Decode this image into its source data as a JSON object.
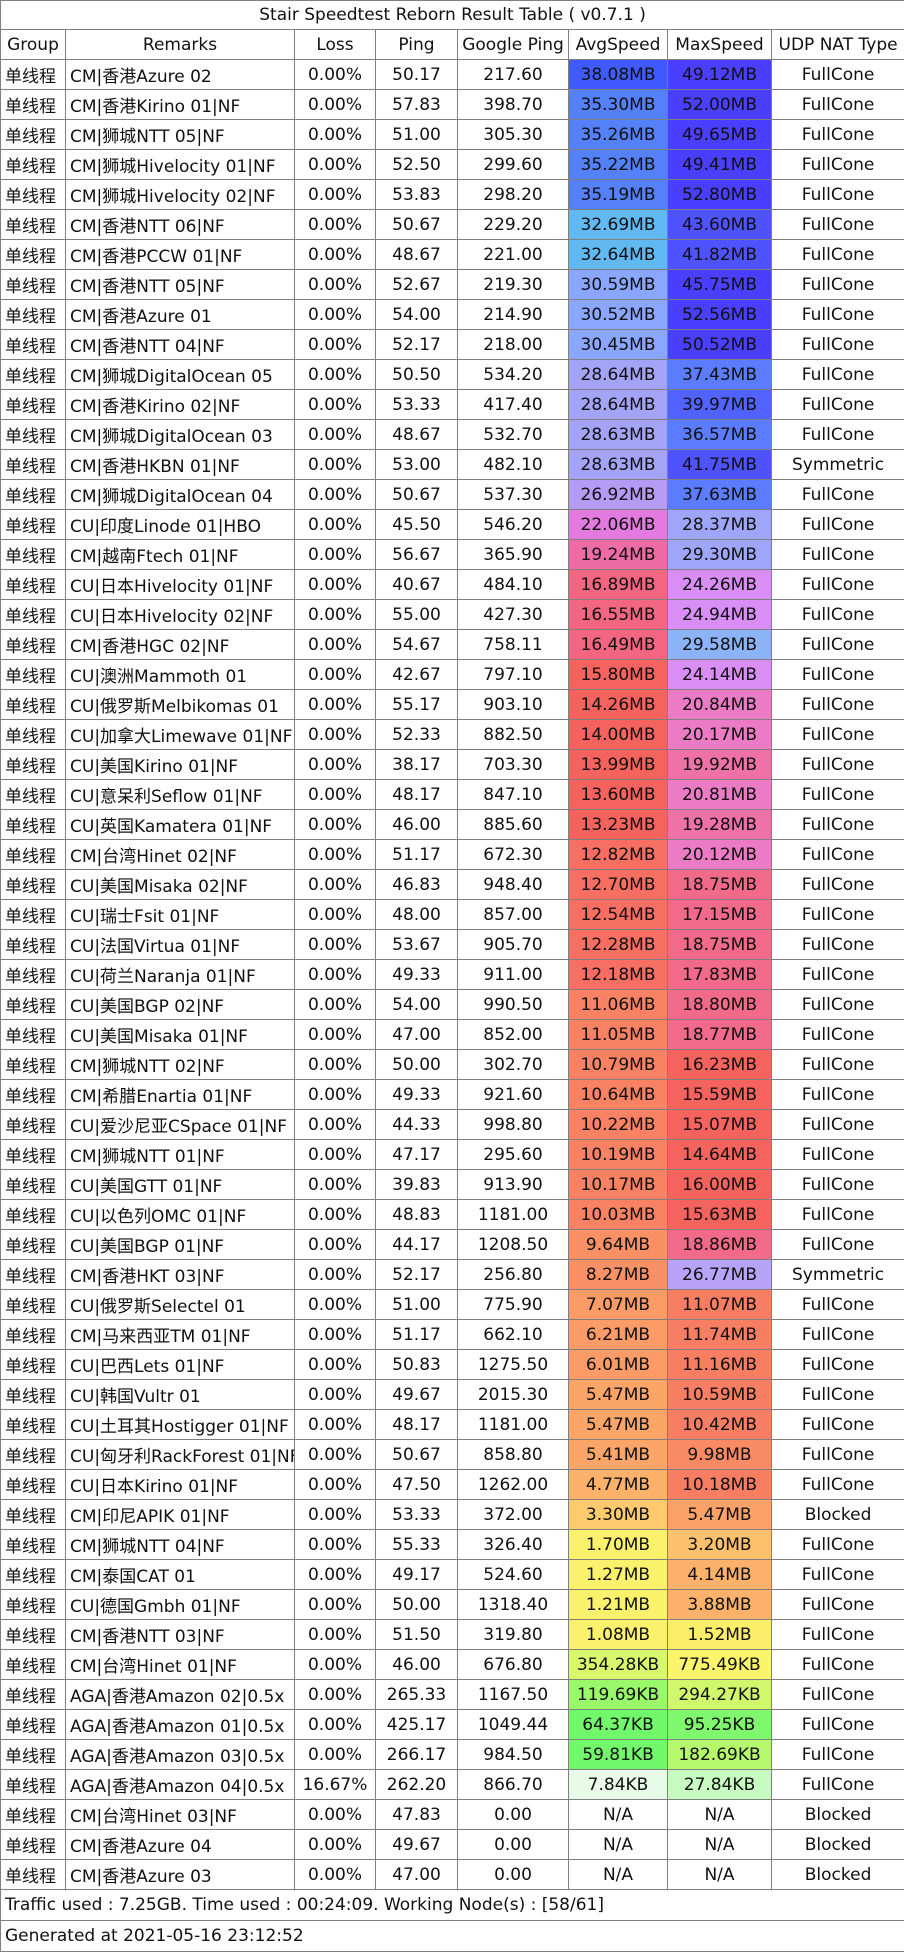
{
  "title": "Stair Speedtest Reborn Result Table ( v0.7.1 )",
  "headers": [
    "Group",
    "Remarks",
    "Loss",
    "Ping",
    "Google Ping",
    "AvgSpeed",
    "MaxSpeed",
    "UDP NAT Type"
  ],
  "rows": [
    {
      "group": "单线程",
      "remarks": "CM|香港Azure 02",
      "loss": "0.00%",
      "ping": "50.17",
      "gping": "217.60",
      "avg": "38.08MB",
      "avg_color": "#3F5BFF",
      "max": "49.12MB",
      "max_color": "#4A3EFF",
      "nat": "FullCone"
    },
    {
      "group": "单线程",
      "remarks": "CM|香港Kirino 01|NF",
      "loss": "0.00%",
      "ping": "57.83",
      "gping": "398.70",
      "avg": "35.30MB",
      "avg_color": "#5581F8",
      "max": "52.00MB",
      "max_color": "#4A3EFF",
      "nat": "FullCone"
    },
    {
      "group": "单线程",
      "remarks": "CM|狮城NTT 05|NF",
      "loss": "0.00%",
      "ping": "51.00",
      "gping": "305.30",
      "avg": "35.26MB",
      "avg_color": "#5581F8",
      "max": "49.65MB",
      "max_color": "#4A3EFF",
      "nat": "FullCone"
    },
    {
      "group": "单线程",
      "remarks": "CM|狮城Hivelocity 01|NF",
      "loss": "0.00%",
      "ping": "52.50",
      "gping": "299.60",
      "avg": "35.22MB",
      "avg_color": "#5581F8",
      "max": "49.41MB",
      "max_color": "#4A3EFF",
      "nat": "FullCone"
    },
    {
      "group": "单线程",
      "remarks": "CM|狮城Hivelocity 02|NF",
      "loss": "0.00%",
      "ping": "53.83",
      "gping": "298.20",
      "avg": "35.19MB",
      "avg_color": "#5581F8",
      "max": "52.80MB",
      "max_color": "#4A3EFF",
      "nat": "FullCone"
    },
    {
      "group": "单线程",
      "remarks": "CM|香港NTT 06|NF",
      "loss": "0.00%",
      "ping": "50.67",
      "gping": "229.20",
      "avg": "32.69MB",
      "avg_color": "#62B9F2",
      "max": "43.60MB",
      "max_color": "#4F52FF",
      "nat": "FullCone"
    },
    {
      "group": "单线程",
      "remarks": "CM|香港PCCW 01|NF",
      "loss": "0.00%",
      "ping": "48.67",
      "gping": "221.00",
      "avg": "32.64MB",
      "avg_color": "#62B9F2",
      "max": "41.82MB",
      "max_color": "#4F52FF",
      "nat": "FullCone"
    },
    {
      "group": "单线程",
      "remarks": "CM|香港NTT 05|NF",
      "loss": "0.00%",
      "ping": "52.67",
      "gping": "219.30",
      "avg": "30.59MB",
      "avg_color": "#8BA6FF",
      "max": "45.75MB",
      "max_color": "#4A3EFF",
      "nat": "FullCone"
    },
    {
      "group": "单线程",
      "remarks": "CM|香港Azure 01",
      "loss": "0.00%",
      "ping": "54.00",
      "gping": "214.90",
      "avg": "30.52MB",
      "avg_color": "#8BA6FF",
      "max": "52.56MB",
      "max_color": "#4A3EFF",
      "nat": "FullCone"
    },
    {
      "group": "单线程",
      "remarks": "CM|香港NTT 04|NF",
      "loss": "0.00%",
      "ping": "52.17",
      "gping": "218.00",
      "avg": "30.45MB",
      "avg_color": "#8BA6FF",
      "max": "50.52MB",
      "max_color": "#4A3EFF",
      "nat": "FullCone"
    },
    {
      "group": "单线程",
      "remarks": "CM|狮城DigitalOcean 05",
      "loss": "0.00%",
      "ping": "50.50",
      "gping": "534.20",
      "avg": "28.64MB",
      "avg_color": "#A4A4F6",
      "max": "37.43MB",
      "max_color": "#5B7CFF",
      "nat": "FullCone"
    },
    {
      "group": "单线程",
      "remarks": "CM|香港Kirino 02|NF",
      "loss": "0.00%",
      "ping": "53.33",
      "gping": "417.40",
      "avg": "28.64MB",
      "avg_color": "#A4A4F6",
      "max": "39.97MB",
      "max_color": "#5162FF",
      "nat": "FullCone"
    },
    {
      "group": "单线程",
      "remarks": "CM|狮城DigitalOcean 03",
      "loss": "0.00%",
      "ping": "48.67",
      "gping": "532.70",
      "avg": "28.63MB",
      "avg_color": "#A4A4F6",
      "max": "36.57MB",
      "max_color": "#5B7CFF",
      "nat": "FullCone"
    },
    {
      "group": "单线程",
      "remarks": "CM|香港HKBN 01|NF",
      "loss": "0.00%",
      "ping": "53.00",
      "gping": "482.10",
      "avg": "28.63MB",
      "avg_color": "#A4A4F6",
      "max": "41.75MB",
      "max_color": "#4F52FF",
      "nat": "Symmetric"
    },
    {
      "group": "单线程",
      "remarks": "CM|狮城DigitalOcean 04",
      "loss": "0.00%",
      "ping": "50.67",
      "gping": "537.30",
      "avg": "26.92MB",
      "avg_color": "#B49CF4",
      "max": "37.63MB",
      "max_color": "#5B7CFF",
      "nat": "FullCone"
    },
    {
      "group": "单线程",
      "remarks": "CU|印度Linode 01|HBO",
      "loss": "0.00%",
      "ping": "45.50",
      "gping": "546.20",
      "avg": "22.06MB",
      "avg_color": "#E27AE0",
      "max": "28.37MB",
      "max_color": "#9FA6FA",
      "nat": "FullCone"
    },
    {
      "group": "单线程",
      "remarks": "CM|越南Ftech 01|NF",
      "loss": "0.00%",
      "ping": "56.67",
      "gping": "365.90",
      "avg": "19.24MB",
      "avg_color": "#EE6CA6",
      "max": "29.30MB",
      "max_color": "#9FA6FA",
      "nat": "FullCone"
    },
    {
      "group": "单线程",
      "remarks": "CU|日本Hivelocity 01|NF",
      "loss": "0.00%",
      "ping": "40.67",
      "gping": "484.10",
      "avg": "16.89MB",
      "avg_color": "#F36682",
      "max": "24.26MB",
      "max_color": "#D98EF6",
      "nat": "FullCone"
    },
    {
      "group": "单线程",
      "remarks": "CU|日本Hivelocity 02|NF",
      "loss": "0.00%",
      "ping": "55.00",
      "gping": "427.30",
      "avg": "16.55MB",
      "avg_color": "#F36682",
      "max": "24.94MB",
      "max_color": "#D98EF6",
      "nat": "FullCone"
    },
    {
      "group": "单线程",
      "remarks": "CM|香港HGC 02|NF",
      "loss": "0.00%",
      "ping": "54.67",
      "gping": "758.11",
      "avg": "16.49MB",
      "avg_color": "#F36682",
      "max": "29.58MB",
      "max_color": "#8CB2F7",
      "nat": "FullCone"
    },
    {
      "group": "单线程",
      "remarks": "CU|澳洲Mammoth 01",
      "loss": "0.00%",
      "ping": "42.67",
      "gping": "797.10",
      "avg": "15.80MB",
      "avg_color": "#F5635E",
      "max": "24.14MB",
      "max_color": "#D98EF6",
      "nat": "FullCone"
    },
    {
      "group": "单线程",
      "remarks": "CU|俄罗斯Melbikomas 01",
      "loss": "0.00%",
      "ping": "55.17",
      "gping": "903.10",
      "avg": "14.26MB",
      "avg_color": "#F5635E",
      "max": "20.84MB",
      "max_color": "#EC7BC6",
      "nat": "FullCone"
    },
    {
      "group": "单线程",
      "remarks": "CU|加拿大Limewave 01|NF",
      "loss": "0.00%",
      "ping": "52.33",
      "gping": "882.50",
      "avg": "14.00MB",
      "avg_color": "#F5635E",
      "max": "20.17MB",
      "max_color": "#EC7BC6",
      "nat": "FullCone"
    },
    {
      "group": "单线程",
      "remarks": "CU|美国Kirino 01|NF",
      "loss": "0.00%",
      "ping": "38.17",
      "gping": "703.30",
      "avg": "13.99MB",
      "avg_color": "#F5635E",
      "max": "19.92MB",
      "max_color": "#EE72A8",
      "nat": "FullCone"
    },
    {
      "group": "单线程",
      "remarks": "CU|意呆利Seflow 01|NF",
      "loss": "0.00%",
      "ping": "48.17",
      "gping": "847.10",
      "avg": "13.60MB",
      "avg_color": "#F5635E",
      "max": "20.81MB",
      "max_color": "#EC7BC6",
      "nat": "FullCone"
    },
    {
      "group": "单线程",
      "remarks": "CU|英国Kamatera 01|NF",
      "loss": "0.00%",
      "ping": "46.00",
      "gping": "885.60",
      "avg": "13.23MB",
      "avg_color": "#F5635E",
      "max": "19.28MB",
      "max_color": "#EE72A8",
      "nat": "FullCone"
    },
    {
      "group": "单线程",
      "remarks": "CM|台湾Hinet 02|NF",
      "loss": "0.00%",
      "ping": "51.17",
      "gping": "672.30",
      "avg": "12.82MB",
      "avg_color": "#F76E62",
      "max": "20.12MB",
      "max_color": "#EC7BC6",
      "nat": "FullCone"
    },
    {
      "group": "单线程",
      "remarks": "CU|美国Misaka 02|NF",
      "loss": "0.00%",
      "ping": "46.83",
      "gping": "948.40",
      "avg": "12.70MB",
      "avg_color": "#F76E62",
      "max": "18.75MB",
      "max_color": "#F26A8A",
      "nat": "FullCone"
    },
    {
      "group": "单线程",
      "remarks": "CU|瑞士Fsit 01|NF",
      "loss": "0.00%",
      "ping": "48.00",
      "gping": "857.00",
      "avg": "12.54MB",
      "avg_color": "#F76E62",
      "max": "17.15MB",
      "max_color": "#F26A8A",
      "nat": "FullCone"
    },
    {
      "group": "单线程",
      "remarks": "CU|法国Virtua 01|NF",
      "loss": "0.00%",
      "ping": "53.67",
      "gping": "905.70",
      "avg": "12.28MB",
      "avg_color": "#F76E62",
      "max": "18.75MB",
      "max_color": "#F26A8A",
      "nat": "FullCone"
    },
    {
      "group": "单线程",
      "remarks": "CU|荷兰Naranja 01|NF",
      "loss": "0.00%",
      "ping": "49.33",
      "gping": "911.00",
      "avg": "12.18MB",
      "avg_color": "#F76E62",
      "max": "17.83MB",
      "max_color": "#F26A8A",
      "nat": "FullCone"
    },
    {
      "group": "单线程",
      "remarks": "CU|美国BGP 02|NF",
      "loss": "0.00%",
      "ping": "54.00",
      "gping": "990.50",
      "avg": "11.06MB",
      "avg_color": "#F98264",
      "max": "18.80MB",
      "max_color": "#F26A8A",
      "nat": "FullCone"
    },
    {
      "group": "单线程",
      "remarks": "CU|美国Misaka 01|NF",
      "loss": "0.00%",
      "ping": "47.00",
      "gping": "852.00",
      "avg": "11.05MB",
      "avg_color": "#F98264",
      "max": "18.77MB",
      "max_color": "#F26A8A",
      "nat": "FullCone"
    },
    {
      "group": "单线程",
      "remarks": "CM|狮城NTT 02|NF",
      "loss": "0.00%",
      "ping": "50.00",
      "gping": "302.70",
      "avg": "10.79MB",
      "avg_color": "#F98264",
      "max": "16.23MB",
      "max_color": "#F5635E",
      "nat": "FullCone"
    },
    {
      "group": "单线程",
      "remarks": "CM|希腊Enartia 01|NF",
      "loss": "0.00%",
      "ping": "49.33",
      "gping": "921.60",
      "avg": "10.64MB",
      "avg_color": "#F98264",
      "max": "15.59MB",
      "max_color": "#F5635E",
      "nat": "FullCone"
    },
    {
      "group": "单线程",
      "remarks": "CU|爱沙尼亚CSpace 01|NF",
      "loss": "0.00%",
      "ping": "44.33",
      "gping": "998.80",
      "avg": "10.22MB",
      "avg_color": "#F98264",
      "max": "15.07MB",
      "max_color": "#F5635E",
      "nat": "FullCone"
    },
    {
      "group": "单线程",
      "remarks": "CM|狮城NTT 01|NF",
      "loss": "0.00%",
      "ping": "47.17",
      "gping": "295.60",
      "avg": "10.19MB",
      "avg_color": "#F98264",
      "max": "14.64MB",
      "max_color": "#F5635E",
      "nat": "FullCone"
    },
    {
      "group": "单线程",
      "remarks": "CU|美国GTT 01|NF",
      "loss": "0.00%",
      "ping": "39.83",
      "gping": "913.90",
      "avg": "10.17MB",
      "avg_color": "#F98264",
      "max": "16.00MB",
      "max_color": "#F5635E",
      "nat": "FullCone"
    },
    {
      "group": "单线程",
      "remarks": "CU|以色列OMC 01|NF",
      "loss": "0.00%",
      "ping": "48.83",
      "gping": "1181.00",
      "avg": "10.03MB",
      "avg_color": "#F98264",
      "max": "15.63MB",
      "max_color": "#F5635E",
      "nat": "FullCone"
    },
    {
      "group": "单线程",
      "remarks": "CU|美国BGP 01|NF",
      "loss": "0.00%",
      "ping": "44.17",
      "gping": "1208.50",
      "avg": "9.64MB",
      "avg_color": "#FA9066",
      "max": "18.86MB",
      "max_color": "#F26A8A",
      "nat": "FullCone"
    },
    {
      "group": "单线程",
      "remarks": "CM|香港HKT 03|NF",
      "loss": "0.00%",
      "ping": "52.17",
      "gping": "256.80",
      "avg": "8.27MB",
      "avg_color": "#FA9066",
      "max": "26.77MB",
      "max_color": "#B7A4F8",
      "nat": "Symmetric"
    },
    {
      "group": "单线程",
      "remarks": "CU|俄罗斯Selectel 01",
      "loss": "0.00%",
      "ping": "51.00",
      "gping": "775.90",
      "avg": "7.07MB",
      "avg_color": "#FB9B67",
      "max": "11.07MB",
      "max_color": "#F87E63",
      "nat": "FullCone"
    },
    {
      "group": "单线程",
      "remarks": "CM|马来西亚TM 01|NF",
      "loss": "0.00%",
      "ping": "51.17",
      "gping": "662.10",
      "avg": "6.21MB",
      "avg_color": "#FB9B67",
      "max": "11.74MB",
      "max_color": "#F87E63",
      "nat": "FullCone"
    },
    {
      "group": "单线程",
      "remarks": "CU|巴西Lets 01|NF",
      "loss": "0.00%",
      "ping": "50.83",
      "gping": "1275.50",
      "avg": "6.01MB",
      "avg_color": "#FB9B67",
      "max": "11.16MB",
      "max_color": "#F87E63",
      "nat": "FullCone"
    },
    {
      "group": "单线程",
      "remarks": "CU|韩国Vultr 01",
      "loss": "0.00%",
      "ping": "49.67",
      "gping": "2015.30",
      "avg": "5.47MB",
      "avg_color": "#FCA568",
      "max": "10.59MB",
      "max_color": "#F87E63",
      "nat": "FullCone"
    },
    {
      "group": "单线程",
      "remarks": "CU|土耳其Hostigger 01|NF",
      "loss": "0.00%",
      "ping": "48.17",
      "gping": "1181.00",
      "avg": "5.47MB",
      "avg_color": "#FCA568",
      "max": "10.42MB",
      "max_color": "#F87E63",
      "nat": "FullCone"
    },
    {
      "group": "单线程",
      "remarks": "CU|匈牙利RackForest 01|NF",
      "loss": "0.00%",
      "ping": "50.67",
      "gping": "858.80",
      "avg": "5.41MB",
      "avg_color": "#FCA568",
      "max": "9.98MB",
      "max_color": "#F98A66",
      "nat": "FullCone"
    },
    {
      "group": "单线程",
      "remarks": "CU|日本Kirino 01|NF",
      "loss": "0.00%",
      "ping": "47.50",
      "gping": "1262.00",
      "avg": "4.77MB",
      "avg_color": "#FCB26A",
      "max": "10.18MB",
      "max_color": "#F87E63",
      "nat": "FullCone"
    },
    {
      "group": "单线程",
      "remarks": "CM|印尼APIK 01|NF",
      "loss": "0.00%",
      "ping": "53.33",
      "gping": "372.00",
      "avg": "3.30MB",
      "avg_color": "#FDCB6E",
      "max": "5.47MB",
      "max_color": "#FBA268",
      "nat": "Blocked"
    },
    {
      "group": "单线程",
      "remarks": "CM|狮城NTT 04|NF",
      "loss": "0.00%",
      "ping": "55.33",
      "gping": "326.40",
      "avg": "1.70MB",
      "avg_color": "#FAF26C",
      "max": "3.20MB",
      "max_color": "#FCC16C",
      "nat": "FullCone"
    },
    {
      "group": "单线程",
      "remarks": "CM|泰国CAT 01",
      "loss": "0.00%",
      "ping": "49.17",
      "gping": "524.60",
      "avg": "1.27MB",
      "avg_color": "#FAF26C",
      "max": "4.14MB",
      "max_color": "#FCB26A",
      "nat": "FullCone"
    },
    {
      "group": "单线程",
      "remarks": "CU|德国Gmbh 01|NF",
      "loss": "0.00%",
      "ping": "50.00",
      "gping": "1318.40",
      "avg": "1.21MB",
      "avg_color": "#FAF26C",
      "max": "3.88MB",
      "max_color": "#FCB26A",
      "nat": "FullCone"
    },
    {
      "group": "单线程",
      "remarks": "CM|香港NTT 03|NF",
      "loss": "0.00%",
      "ping": "51.50",
      "gping": "319.80",
      "avg": "1.08MB",
      "avg_color": "#FAF26C",
      "max": "1.52MB",
      "max_color": "#FBEF6A",
      "nat": "FullCone"
    },
    {
      "group": "单线程",
      "remarks": "CM|台湾Hinet 01|NF",
      "loss": "0.00%",
      "ping": "46.00",
      "gping": "676.80",
      "avg": "354.28KB",
      "avg_color": "#D9F76C",
      "max": "775.49KB",
      "max_color": "#FBF56C",
      "nat": "FullCone"
    },
    {
      "group": "单线程",
      "remarks": "AGA|香港Amazon 02|0.5x",
      "loss": "0.00%",
      "ping": "265.33",
      "gping": "1167.50",
      "avg": "119.69KB",
      "avg_color": "#9AF96A",
      "max": "294.27KB",
      "max_color": "#D1F86C",
      "nat": "FullCone"
    },
    {
      "group": "单线程",
      "remarks": "AGA|香港Amazon 01|0.5x",
      "loss": "0.00%",
      "ping": "425.17",
      "gping": "1049.44",
      "avg": "64.37KB",
      "avg_color": "#72F96B",
      "max": "95.25KB",
      "max_color": "#7FF86D",
      "nat": "FullCone"
    },
    {
      "group": "单线程",
      "remarks": "AGA|香港Amazon 03|0.5x",
      "loss": "0.00%",
      "ping": "266.17",
      "gping": "984.50",
      "avg": "59.81KB",
      "avg_color": "#72F96B",
      "max": "182.69KB",
      "max_color": "#B6F86C",
      "nat": "FullCone"
    },
    {
      "group": "单线程",
      "remarks": "AGA|香港Amazon 04|0.5x",
      "loss": "16.67%",
      "ping": "262.20",
      "gping": "866.70",
      "avg": "7.84KB",
      "avg_color": "#E8FBE6",
      "max": "27.84KB",
      "max_color": "#C6FAC0",
      "nat": "FullCone"
    },
    {
      "group": "单线程",
      "remarks": "CM|台湾Hinet 03|NF",
      "loss": "0.00%",
      "ping": "47.83",
      "gping": "0.00",
      "avg": "N/A",
      "avg_color": "#FFFFFF",
      "max": "N/A",
      "max_color": "#FFFFFF",
      "nat": "Blocked"
    },
    {
      "group": "单线程",
      "remarks": "CM|香港Azure 04",
      "loss": "0.00%",
      "ping": "49.67",
      "gping": "0.00",
      "avg": "N/A",
      "avg_color": "#FFFFFF",
      "max": "N/A",
      "max_color": "#FFFFFF",
      "nat": "Blocked"
    },
    {
      "group": "单线程",
      "remarks": "CM|香港Azure 03",
      "loss": "0.00%",
      "ping": "47.00",
      "gping": "0.00",
      "avg": "N/A",
      "avg_color": "#FFFFFF",
      "max": "N/A",
      "max_color": "#FFFFFF",
      "nat": "Blocked"
    }
  ],
  "footer": {
    "traffic": "Traffic used : 7.25GB. Time used : 00:24:09. Working Node(s) : [58/61]",
    "generated": "Generated at 2021-05-16 23:12:52"
  }
}
